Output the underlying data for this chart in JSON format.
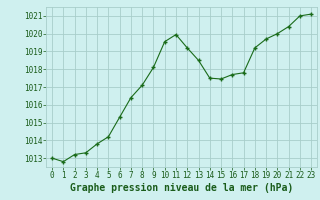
{
  "x": [
    0,
    1,
    2,
    3,
    4,
    5,
    6,
    7,
    8,
    9,
    10,
    11,
    12,
    13,
    14,
    15,
    16,
    17,
    18,
    19,
    20,
    21,
    22,
    23
  ],
  "y": [
    1013.0,
    1012.8,
    1013.2,
    1013.3,
    1013.8,
    1014.2,
    1015.3,
    1016.4,
    1017.1,
    1018.1,
    1019.55,
    1019.95,
    1019.2,
    1018.5,
    1017.5,
    1017.45,
    1017.7,
    1017.8,
    1019.2,
    1019.7,
    1020.0,
    1020.4,
    1021.0,
    1021.1
  ],
  "line_color": "#1a6b1a",
  "marker": "+",
  "marker_size": 3.5,
  "marker_linewidth": 1.0,
  "background_color": "#cff0ef",
  "grid_color": "#a8ceca",
  "xlabel": "Graphe pression niveau de la mer (hPa)",
  "xlabel_color": "#1a5c1a",
  "xlabel_fontsize": 7.0,
  "tick_color": "#1a5c1a",
  "tick_fontsize": 5.5,
  "ylim": [
    1012.5,
    1021.5
  ],
  "xlim": [
    -0.5,
    23.5
  ],
  "yticks": [
    1013,
    1014,
    1015,
    1016,
    1017,
    1018,
    1019,
    1020,
    1021
  ],
  "xticks": [
    0,
    1,
    2,
    3,
    4,
    5,
    6,
    7,
    8,
    9,
    10,
    11,
    12,
    13,
    14,
    15,
    16,
    17,
    18,
    19,
    20,
    21,
    22,
    23
  ],
  "line_width": 0.8
}
